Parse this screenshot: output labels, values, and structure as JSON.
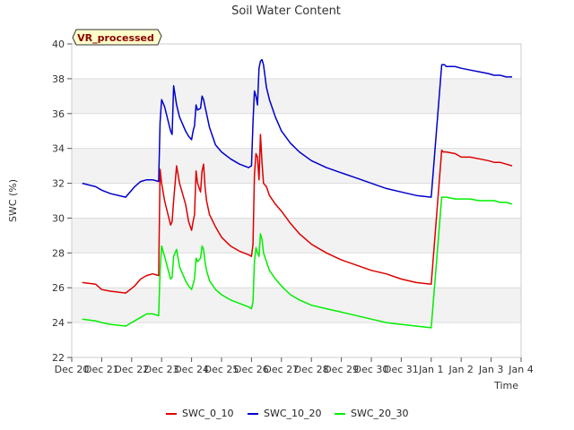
{
  "chart_data": {
    "type": "line",
    "title": "Soil Water Content",
    "xlabel": "Time",
    "ylabel": "SWC (%)",
    "badge": "VR_processed",
    "ylim": [
      22,
      40
    ],
    "xlim": [
      0,
      15
    ],
    "yticks": [
      22,
      24,
      26,
      28,
      30,
      32,
      34,
      36,
      38,
      40
    ],
    "xticks": [
      {
        "x": 0,
        "label": "Dec 20"
      },
      {
        "x": 1,
        "label": "Dec 21"
      },
      {
        "x": 2,
        "label": "Dec 22"
      },
      {
        "x": 3,
        "label": "Dec 23"
      },
      {
        "x": 4,
        "label": "Dec 24"
      },
      {
        "x": 5,
        "label": "Dec 25"
      },
      {
        "x": 6,
        "label": "Dec 26"
      },
      {
        "x": 7,
        "label": "Dec 27"
      },
      {
        "x": 8,
        "label": "Dec 28"
      },
      {
        "x": 9,
        "label": "Dec 29"
      },
      {
        "x": 10,
        "label": "Dec 30"
      },
      {
        "x": 11,
        "label": "Dec 31"
      },
      {
        "x": 12,
        "label": "Jan 1"
      },
      {
        "x": 13,
        "label": "Jan 2"
      },
      {
        "x": 14,
        "label": "Jan 3"
      },
      {
        "x": 15,
        "label": "Jan 4"
      }
    ],
    "series": [
      {
        "name": "SWC_0_10",
        "color": "#dd0000",
        "x": [
          0.35,
          0.8,
          1.0,
          1.3,
          1.8,
          2.1,
          2.3,
          2.5,
          2.7,
          2.9,
          2.95,
          3.0,
          3.1,
          3.3,
          3.35,
          3.4,
          3.5,
          3.6,
          3.8,
          3.9,
          4.0,
          4.05,
          4.1,
          4.15,
          4.2,
          4.3,
          4.35,
          4.4,
          4.45,
          4.5,
          4.6,
          4.8,
          5.0,
          5.3,
          5.6,
          5.9,
          6.0,
          6.05,
          6.1,
          6.15,
          6.2,
          6.25,
          6.3,
          6.35,
          6.4,
          6.5,
          6.6,
          6.8,
          7.0,
          7.3,
          7.6,
          8.0,
          8.5,
          9.0,
          9.5,
          10.0,
          10.5,
          11.0,
          11.5,
          12.0,
          12.35,
          12.4,
          12.45,
          12.5,
          12.8,
          13.0,
          13.3,
          13.6,
          13.9,
          14.1,
          14.3,
          14.5,
          14.7
        ],
        "y": [
          26.3,
          26.2,
          25.9,
          25.8,
          25.7,
          26.1,
          26.5,
          26.7,
          26.8,
          26.7,
          32.8,
          32.0,
          31.0,
          29.6,
          29.8,
          31.0,
          33.0,
          32.0,
          30.8,
          29.8,
          29.3,
          29.8,
          30.2,
          32.7,
          32.0,
          31.5,
          32.7,
          33.1,
          31.8,
          31.0,
          30.2,
          29.5,
          28.9,
          28.4,
          28.1,
          27.9,
          27.8,
          28.5,
          32.5,
          33.7,
          33.5,
          32.2,
          34.8,
          33.2,
          32.0,
          31.8,
          31.3,
          30.8,
          30.4,
          29.7,
          29.1,
          28.5,
          28.0,
          27.6,
          27.3,
          27.0,
          26.8,
          26.5,
          26.3,
          26.2,
          33.9,
          33.8,
          33.8,
          33.8,
          33.7,
          33.5,
          33.5,
          33.4,
          33.3,
          33.2,
          33.2,
          33.1,
          33.0
        ]
      },
      {
        "name": "SWC_10_20",
        "color": "#0000cc",
        "x": [
          0.35,
          0.8,
          1.0,
          1.3,
          1.8,
          2.1,
          2.3,
          2.5,
          2.7,
          2.9,
          2.95,
          3.0,
          3.1,
          3.3,
          3.35,
          3.4,
          3.5,
          3.6,
          3.8,
          3.9,
          4.0,
          4.05,
          4.1,
          4.15,
          4.2,
          4.3,
          4.35,
          4.4,
          4.45,
          4.5,
          4.6,
          4.8,
          5.0,
          5.3,
          5.6,
          5.9,
          6.0,
          6.05,
          6.1,
          6.15,
          6.2,
          6.25,
          6.3,
          6.35,
          6.4,
          6.5,
          6.6,
          6.8,
          7.0,
          7.3,
          7.6,
          8.0,
          8.5,
          9.0,
          9.5,
          10.0,
          10.5,
          11.0,
          11.5,
          12.0,
          12.35,
          12.4,
          12.45,
          12.5,
          12.8,
          13.0,
          13.3,
          13.6,
          13.9,
          14.1,
          14.3,
          14.5,
          14.7
        ],
        "y": [
          32.0,
          31.8,
          31.6,
          31.4,
          31.2,
          31.8,
          32.1,
          32.2,
          32.2,
          32.1,
          35.5,
          36.8,
          36.4,
          35.0,
          34.8,
          37.6,
          36.5,
          35.8,
          35.0,
          34.7,
          34.5,
          35.0,
          35.3,
          36.5,
          36.2,
          36.3,
          37.0,
          36.8,
          36.4,
          36.0,
          35.2,
          34.2,
          33.8,
          33.4,
          33.1,
          32.9,
          33.0,
          35.5,
          37.3,
          37.0,
          36.5,
          38.6,
          39.0,
          39.1,
          38.8,
          37.5,
          36.8,
          35.8,
          35.0,
          34.3,
          33.8,
          33.3,
          32.9,
          32.6,
          32.3,
          32.0,
          31.7,
          31.5,
          31.3,
          31.2,
          38.8,
          38.8,
          38.8,
          38.7,
          38.7,
          38.6,
          38.5,
          38.4,
          38.3,
          38.2,
          38.2,
          38.1,
          38.1
        ]
      },
      {
        "name": "SWC_20_30",
        "color": "#00ee00",
        "x": [
          0.35,
          0.8,
          1.0,
          1.3,
          1.8,
          2.1,
          2.3,
          2.5,
          2.7,
          2.9,
          2.95,
          3.0,
          3.1,
          3.3,
          3.35,
          3.4,
          3.5,
          3.6,
          3.8,
          3.9,
          4.0,
          4.05,
          4.1,
          4.15,
          4.2,
          4.3,
          4.35,
          4.4,
          4.45,
          4.5,
          4.6,
          4.8,
          5.0,
          5.3,
          5.6,
          5.9,
          6.0,
          6.05,
          6.1,
          6.15,
          6.2,
          6.25,
          6.3,
          6.35,
          6.4,
          6.5,
          6.6,
          6.8,
          7.0,
          7.3,
          7.6,
          8.0,
          8.5,
          9.0,
          9.5,
          10.0,
          10.5,
          11.0,
          11.5,
          12.0,
          12.35,
          12.4,
          12.45,
          12.5,
          12.8,
          13.0,
          13.3,
          13.6,
          13.9,
          14.1,
          14.3,
          14.5,
          14.7
        ],
        "y": [
          24.2,
          24.1,
          24.0,
          23.9,
          23.8,
          24.1,
          24.3,
          24.5,
          24.5,
          24.4,
          27.0,
          28.4,
          27.8,
          26.5,
          26.6,
          27.8,
          28.2,
          27.2,
          26.4,
          26.1,
          25.9,
          26.2,
          26.5,
          27.7,
          27.5,
          27.7,
          28.4,
          28.2,
          27.5,
          27.0,
          26.4,
          25.9,
          25.6,
          25.3,
          25.1,
          24.9,
          24.8,
          25.2,
          27.5,
          28.3,
          28.0,
          27.8,
          29.1,
          28.8,
          28.0,
          27.5,
          27.0,
          26.5,
          26.1,
          25.6,
          25.3,
          25.0,
          24.8,
          24.6,
          24.4,
          24.2,
          24.0,
          23.9,
          23.8,
          23.7,
          31.2,
          31.2,
          31.2,
          31.2,
          31.1,
          31.1,
          31.1,
          31.0,
          31.0,
          31.0,
          30.9,
          30.9,
          30.8
        ]
      }
    ]
  }
}
